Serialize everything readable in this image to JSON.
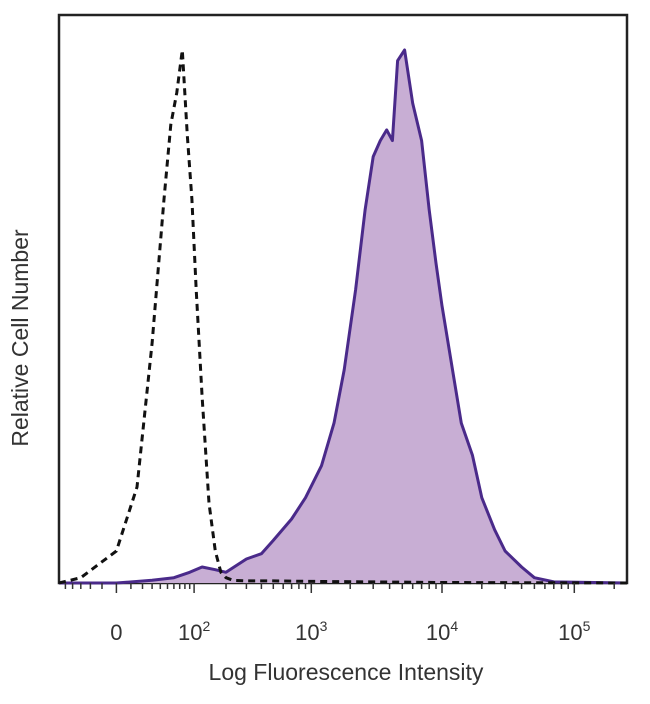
{
  "chart_data": {
    "type": "area",
    "title": "",
    "xlabel": "Log Fluorescence Intensity",
    "ylabel": "Relative Cell Number",
    "x_scale": "biexponential",
    "xlim": [
      -60,
      250000
    ],
    "ylim": [
      0,
      1
    ],
    "grid": false,
    "legend": "none",
    "x_ticks": [
      {
        "value": 0,
        "base": "0",
        "exp": ""
      },
      {
        "value": 100,
        "base": "10",
        "exp": "2"
      },
      {
        "value": 1000,
        "base": "10",
        "exp": "3"
      },
      {
        "value": 10000,
        "base": "10",
        "exp": "4"
      },
      {
        "value": 100000,
        "base": "10",
        "exp": "5"
      }
    ],
    "colors": {
      "filled_line": "#4a2a8a",
      "filled_fill": "#c8aed4",
      "control_line": "#111111",
      "frame": "#222222"
    },
    "series": [
      {
        "style": "dashed-unfilled",
        "x": [
          -60,
          -30,
          0,
          15,
          30,
          45,
          55,
          65,
          75,
          85,
          95,
          105,
          120,
          140,
          160,
          180,
          200,
          230,
          300,
          500,
          1000,
          3000,
          10000,
          250000
        ],
        "y": [
          0.0,
          0.01,
          0.06,
          0.18,
          0.45,
          0.72,
          0.86,
          0.92,
          1.0,
          0.84,
          0.72,
          0.55,
          0.35,
          0.15,
          0.06,
          0.02,
          0.01,
          0.005,
          0.004,
          0.004,
          0.003,
          0.002,
          0.001,
          0.0
        ]
      },
      {
        "style": "filled",
        "x": [
          -60,
          0,
          30,
          60,
          90,
          120,
          160,
          200,
          300,
          400,
          500,
          700,
          900,
          1200,
          1500,
          1800,
          2200,
          2600,
          3000,
          3400,
          3800,
          4200,
          4600,
          5200,
          6000,
          7000,
          8000,
          9000,
          10000,
          12000,
          14000,
          17000,
          20000,
          25000,
          30000,
          40000,
          50000,
          70000,
          250000
        ],
        "y": [
          0.0,
          0.0,
          0.005,
          0.01,
          0.02,
          0.03,
          0.025,
          0.02,
          0.045,
          0.055,
          0.08,
          0.12,
          0.16,
          0.22,
          0.3,
          0.4,
          0.55,
          0.7,
          0.8,
          0.83,
          0.85,
          0.83,
          0.98,
          1.0,
          0.9,
          0.83,
          0.7,
          0.6,
          0.52,
          0.4,
          0.3,
          0.24,
          0.16,
          0.1,
          0.06,
          0.03,
          0.01,
          0.002,
          0.0
        ]
      }
    ]
  }
}
